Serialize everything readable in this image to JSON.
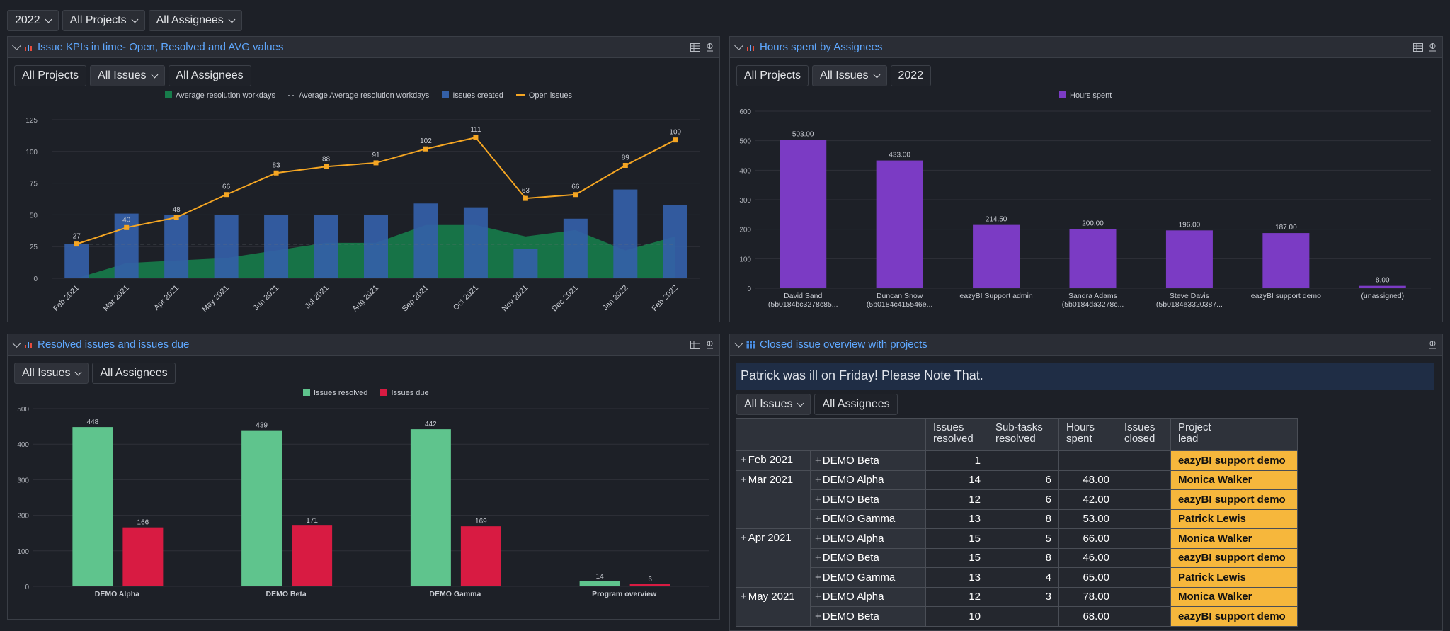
{
  "top_filters": [
    "2022",
    "All Projects",
    "All Assignees"
  ],
  "panels": {
    "kpi": {
      "title": "Issue KPIs in time- Open, Resolved and AVG values",
      "filters": {
        "projects": "All Projects",
        "issues": "All Issues",
        "assignees": "All Assignees"
      },
      "chart_data": {
        "type": "bar",
        "categories": [
          "Feb 2021",
          "Mar 2021",
          "Apr 2021",
          "May 2021",
          "Jun 2021",
          "Jul 2021",
          "Aug 2021",
          "Sep 2021",
          "Oct 2021",
          "Nov 2021",
          "Dec 2021",
          "Jan 2022",
          "Feb 2022"
        ],
        "legend": [
          "Average resolution workdays",
          "Average Average resolution workdays",
          "Issues created",
          "Open issues"
        ],
        "series": [
          {
            "name": "Issues created",
            "kind": "bar",
            "values": [
              27,
              51,
              50,
              50,
              50,
              50,
              50,
              59,
              56,
              23,
              47,
              70,
              58
            ]
          },
          {
            "name": "Open issues",
            "kind": "line",
            "values": [
              27,
              40,
              48,
              66,
              83,
              88,
              91,
              102,
              111,
              63,
              66,
              89,
              109
            ]
          },
          {
            "name": "Average resolution workdays",
            "kind": "area",
            "values": [
              0,
              12,
              14,
              16,
              22,
              28,
              28,
              42,
              42,
              33,
              38,
              22,
              33
            ]
          },
          {
            "name": "Average Average resolution workdays",
            "kind": "dashed",
            "values": [
              27,
              27,
              27,
              27,
              27,
              27,
              27,
              27,
              27,
              27,
              27,
              27,
              27
            ]
          }
        ],
        "ylim": [
          0,
          125
        ],
        "yticks": [
          "125",
          "100",
          "75",
          "50",
          "25",
          "0"
        ],
        "colors": {
          "bar": "#3460a8",
          "line": "#f5a623",
          "area": "#177c4b",
          "dashed": "#6a6e75"
        }
      }
    },
    "hours": {
      "title": "Hours spent by Assignees",
      "filters": {
        "projects": "All Projects",
        "issues": "All Issues",
        "year": "2022"
      },
      "chart_data": {
        "type": "bar",
        "categories": [
          "David Sand|(5b0184bc3278c85...",
          "Duncan Snow|(5b0184c415546e...",
          "eazyBI Support admin",
          "Sandra Adams|(5b0184da3278c...",
          "Steve Davis|(5b0184e3320387...",
          "eazyBI support demo",
          "(unassigned)"
        ],
        "values": [
          503,
          433,
          214.5,
          200,
          196,
          187,
          8
        ],
        "value_labels": [
          "503.00",
          "433.00",
          "214.50",
          "200.00",
          "196.00",
          "187.00",
          "8.00"
        ],
        "legend": [
          "Hours spent"
        ],
        "ylim": [
          0,
          600
        ],
        "yticks": [
          "600",
          "500",
          "400",
          "300",
          "200",
          "100",
          "0"
        ],
        "color": "#7b3bc4"
      }
    },
    "resolved": {
      "title": "Resolved issues and issues due",
      "filters": {
        "issues": "All Issues",
        "assignees": "All Assignees"
      },
      "chart_data": {
        "type": "bar",
        "categories": [
          "DEMO Alpha",
          "DEMO Beta",
          "DEMO Gamma",
          "Program overview"
        ],
        "series": [
          {
            "name": "Issues resolved",
            "values": [
              448,
              439,
              442,
              14
            ]
          },
          {
            "name": "Issues due",
            "values": [
              166,
              171,
              169,
              6
            ]
          }
        ],
        "ylim": [
          0,
          500
        ],
        "yticks": [
          "500",
          "400",
          "300",
          "200",
          "100",
          "0"
        ],
        "colors": [
          "#5fc48d",
          "#d81b42"
        ]
      }
    },
    "closed": {
      "title": "Closed issue overview with projects",
      "note": "Patrick was ill on Friday! Please Note That.",
      "filters": {
        "issues": "All Issues",
        "assignees": "All Assignees"
      },
      "columns": [
        "Issues|resolved",
        "Sub-tasks|resolved",
        "Hours|spent",
        "Issues|closed",
        "Project|lead"
      ],
      "rows": [
        {
          "month": "Feb 2021",
          "project": "DEMO Beta",
          "resolved": "1",
          "subtasks": "",
          "hours": "",
          "closed": "",
          "lead": "eazyBI support demo"
        },
        {
          "month": "Mar 2021",
          "project": "DEMO Alpha",
          "resolved": "14",
          "subtasks": "6",
          "hours": "48.00",
          "closed": "",
          "lead": "Monica Walker"
        },
        {
          "month": "",
          "project": "DEMO Beta",
          "resolved": "12",
          "subtasks": "6",
          "hours": "42.00",
          "closed": "",
          "lead": "eazyBI support demo"
        },
        {
          "month": "",
          "project": "DEMO Gamma",
          "resolved": "13",
          "subtasks": "8",
          "hours": "53.00",
          "closed": "",
          "lead": "Patrick Lewis"
        },
        {
          "month": "Apr 2021",
          "project": "DEMO Alpha",
          "resolved": "15",
          "subtasks": "5",
          "hours": "66.00",
          "closed": "",
          "lead": "Monica Walker"
        },
        {
          "month": "",
          "project": "DEMO Beta",
          "resolved": "15",
          "subtasks": "8",
          "hours": "46.00",
          "closed": "",
          "lead": "eazyBI support demo"
        },
        {
          "month": "",
          "project": "DEMO Gamma",
          "resolved": "13",
          "subtasks": "4",
          "hours": "65.00",
          "closed": "",
          "lead": "Patrick Lewis"
        },
        {
          "month": "May 2021",
          "project": "DEMO Alpha",
          "resolved": "12",
          "subtasks": "3",
          "hours": "78.00",
          "closed": "",
          "lead": "Monica Walker"
        },
        {
          "month": "",
          "project": "DEMO Beta",
          "resolved": "10",
          "subtasks": "",
          "hours": "68.00",
          "closed": "",
          "lead": "eazyBI support demo"
        }
      ]
    }
  }
}
